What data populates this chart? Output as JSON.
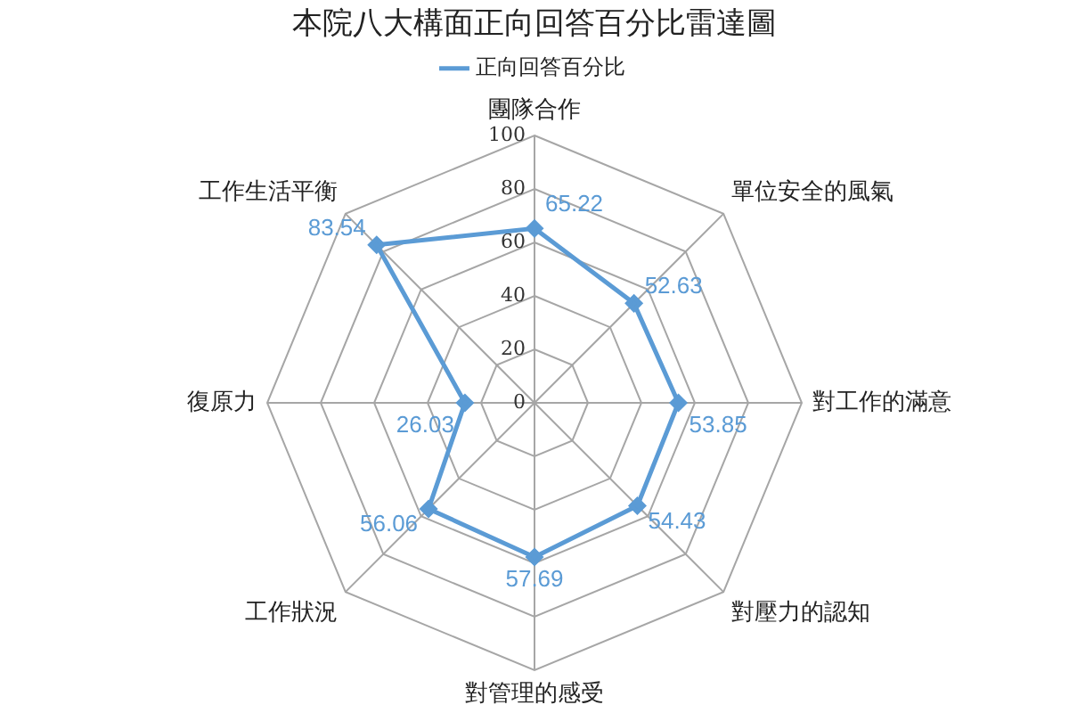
{
  "chart_data": {
    "type": "radar",
    "title": "本院八大構面正向回答百分比雷達圖",
    "categories": [
      "團隊合作",
      "單位安全的風氣",
      "對工作的滿意",
      "對壓力的認知",
      "對管理的感受",
      "工作狀況",
      "復原力",
      "工作生活平衡"
    ],
    "series": [
      {
        "name": "正向回答百分比",
        "color": "#5b9bd5",
        "values": [
          65.22,
          52.63,
          53.85,
          54.43,
          57.69,
          56.06,
          26.03,
          83.54
        ]
      }
    ],
    "ylim": [
      0,
      100
    ],
    "yticks": [
      0,
      20,
      40,
      60,
      80,
      100
    ],
    "grid": true,
    "legend": "top",
    "marker": "diamond",
    "data_labels": true
  }
}
